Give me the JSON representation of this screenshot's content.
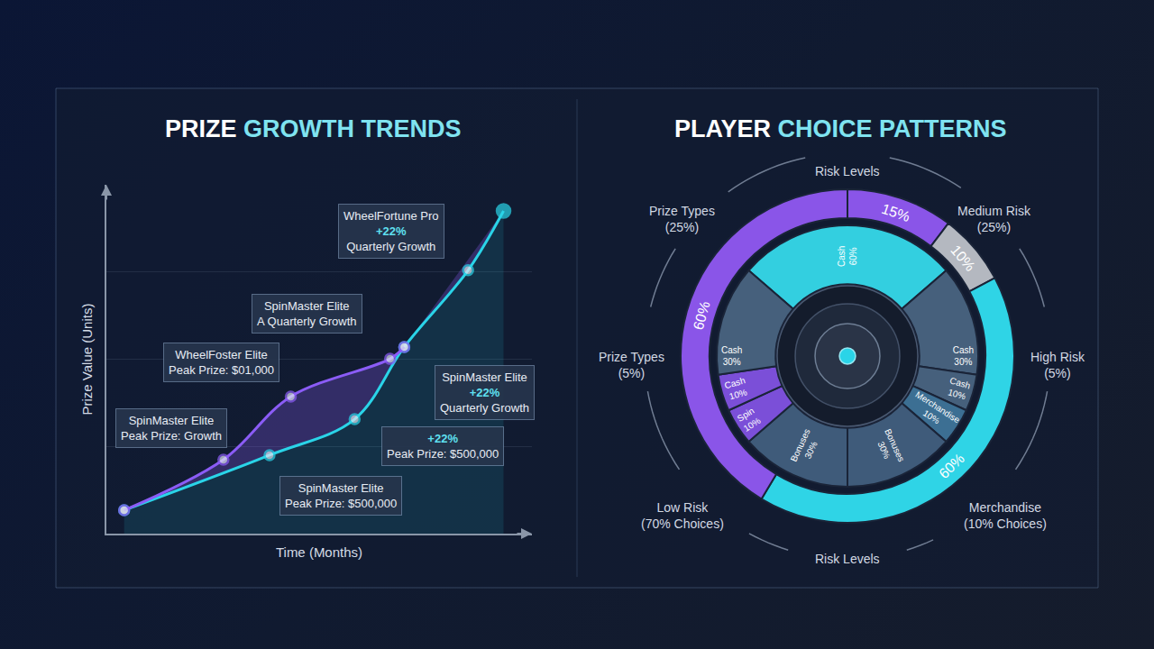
{
  "chart_data": [
    {
      "type": "line",
      "title": "PRIZE GROWTH TRENDS",
      "x_label": "Time (Months)",
      "y_label": "Prize Value (Units)",
      "xlim": [
        0,
        12
      ],
      "ylim": [
        0,
        100
      ],
      "yticks": [
        25,
        50,
        75,
        100
      ],
      "grid": true,
      "tick_labels": false,
      "series": [
        {
          "color": "#2ad4e8",
          "marker": "circle",
          "line_style": "solid",
          "x": [
            0.5,
            4.6,
            7.0,
            8.4,
            10.2,
            11.2
          ],
          "values": [
            6.7,
            22.5,
            32.8,
            53.5,
            75.5,
            92.5
          ]
        },
        {
          "color": "#8b5cf6",
          "marker": "circle",
          "line_style": "solid",
          "x": [
            0.5,
            3.3,
            5.2,
            8.0,
            8.4
          ],
          "values": [
            6.7,
            21.2,
            39.3,
            50.1,
            53.5
          ]
        }
      ],
      "annotations": [
        {
          "lines": [
            "WheelFortune Pro",
            "+22%",
            "Quarterly Growth"
          ]
        },
        {
          "lines": [
            "SpinMaster Elite",
            "A Quarterly Growth"
          ]
        },
        {
          "lines": [
            "WheelFoster Elite",
            "Peak Prize: $01,000"
          ]
        },
        {
          "lines": [
            "SpinMaster Elite",
            "Peak Prize: Growth"
          ]
        },
        {
          "lines": [
            "SpinMaster Elite",
            "+22%",
            "Quarterly Growth"
          ]
        },
        {
          "lines": [
            "+22%",
            "Peak Prize: $500,000"
          ]
        },
        {
          "lines": [
            "SpinMaster Elite",
            "Peak Prize: $500,000"
          ]
        }
      ]
    },
    {
      "type": "pie",
      "title": "PLAYER CHOICE PATTERNS",
      "rings": [
        {
          "values": [
            15,
            10,
            60,
            60
          ],
          "value_labels": [
            "15%",
            "10%",
            "60%",
            "60%"
          ],
          "colors": [
            "#8a55e8",
            "#b4b8c0",
            "#2fd4e6",
            "#8a55e8"
          ]
        },
        {
          "categories": [
            "Cash",
            "Cash",
            "Cash",
            "Merchandise",
            "Bonuses",
            "Bonuses",
            "Spin",
            "Cash",
            "Cash"
          ],
          "values": [
            60,
            30,
            10,
            10,
            30,
            30,
            10,
            10,
            30
          ],
          "value_labels": [
            "60%",
            "30%",
            "10%",
            "10%",
            "30%",
            "30%",
            "10%",
            "10%",
            "30%"
          ],
          "colors": [
            "#33cfe0",
            "#46607c",
            "#46607c",
            "#3c6f93",
            "#3f5b7a",
            "#3f5b7a",
            "#7b4fd8",
            "#7b4fd8",
            "#46607c"
          ]
        }
      ],
      "labels": [
        {
          "lines": [
            "Risk Levels"
          ]
        },
        {
          "lines": [
            "Medium Risk",
            "(25%)"
          ]
        },
        {
          "lines": [
            "High Risk",
            "(5%)"
          ]
        },
        {
          "lines": [
            "Merchandise",
            "(10% Choices)"
          ]
        },
        {
          "lines": [
            "Risk Levels"
          ]
        },
        {
          "lines": [
            "Low Risk",
            "(70% Choices)"
          ]
        },
        {
          "lines": [
            "Prize Types",
            "(5%)"
          ]
        },
        {
          "lines": [
            "Prize Types",
            "(25%)"
          ]
        }
      ]
    }
  ]
}
